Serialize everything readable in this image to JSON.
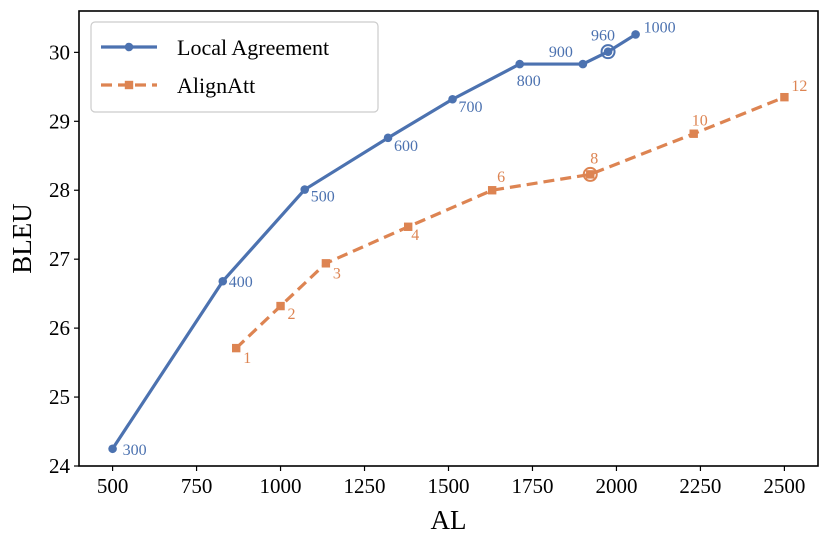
{
  "chart_data": {
    "type": "line",
    "xlabel": "AL",
    "ylabel": "BLEU",
    "xlim": [
      400,
      2600
    ],
    "ylim": [
      24,
      30.6
    ],
    "xticks": [
      500,
      750,
      1000,
      1250,
      1500,
      1750,
      2000,
      2250,
      2500
    ],
    "yticks": [
      24,
      25,
      26,
      27,
      28,
      29,
      30
    ],
    "grid": false,
    "legend_position": "top-left",
    "series": [
      {
        "name": "Local Agreement",
        "color": "#4c72b0",
        "line_style": "solid",
        "marker": "circle",
        "points": [
          {
            "x": 500,
            "y": 24.25,
            "label": "300"
          },
          {
            "x": 828,
            "y": 26.68,
            "label": "400"
          },
          {
            "x": 1072,
            "y": 28.01,
            "label": "500"
          },
          {
            "x": 1320,
            "y": 28.76,
            "label": "600"
          },
          {
            "x": 1512,
            "y": 29.32,
            "label": "700"
          },
          {
            "x": 1712,
            "y": 29.83,
            "label": "800"
          },
          {
            "x": 1900,
            "y": 29.83,
            "label": "900"
          },
          {
            "x": 1975,
            "y": 30.01,
            "label": "960"
          },
          {
            "x": 2057,
            "y": 30.26,
            "label": "1000"
          }
        ],
        "highlighted_label": "960"
      },
      {
        "name": "AlignAtt",
        "color": "#dd8452",
        "line_style": "dashed",
        "marker": "square",
        "points": [
          {
            "x": 868,
            "y": 25.71,
            "label": "1"
          },
          {
            "x": 1000,
            "y": 26.32,
            "label": "2"
          },
          {
            "x": 1135,
            "y": 26.94,
            "label": "3"
          },
          {
            "x": 1380,
            "y": 27.47,
            "label": "4"
          },
          {
            "x": 1630,
            "y": 28.0,
            "label": "6"
          },
          {
            "x": 1922,
            "y": 28.23,
            "label": "8"
          },
          {
            "x": 2230,
            "y": 28.82,
            "label": "10"
          },
          {
            "x": 2500,
            "y": 29.35,
            "label": "12"
          }
        ],
        "highlighted_label": "8"
      }
    ]
  }
}
